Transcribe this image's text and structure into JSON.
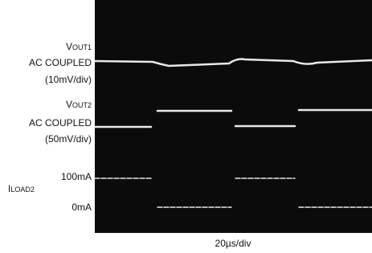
{
  "labels": {
    "vout1": {
      "main": "V",
      "sub": "OUT1"
    },
    "vout1_coupling": "AC COUPLED",
    "vout1_scale": "(10mV/div)",
    "vout2": {
      "main": "V",
      "sub": "OUT2"
    },
    "vout2_coupling": "AC COUPLED",
    "vout2_scale": "(50mV/div)",
    "iload2": {
      "main": "I",
      "sub": "LOAD2"
    },
    "iload2_high": "100mA",
    "iload2_low": "0mA"
  },
  "x_axis_label": "20µs/div"
}
